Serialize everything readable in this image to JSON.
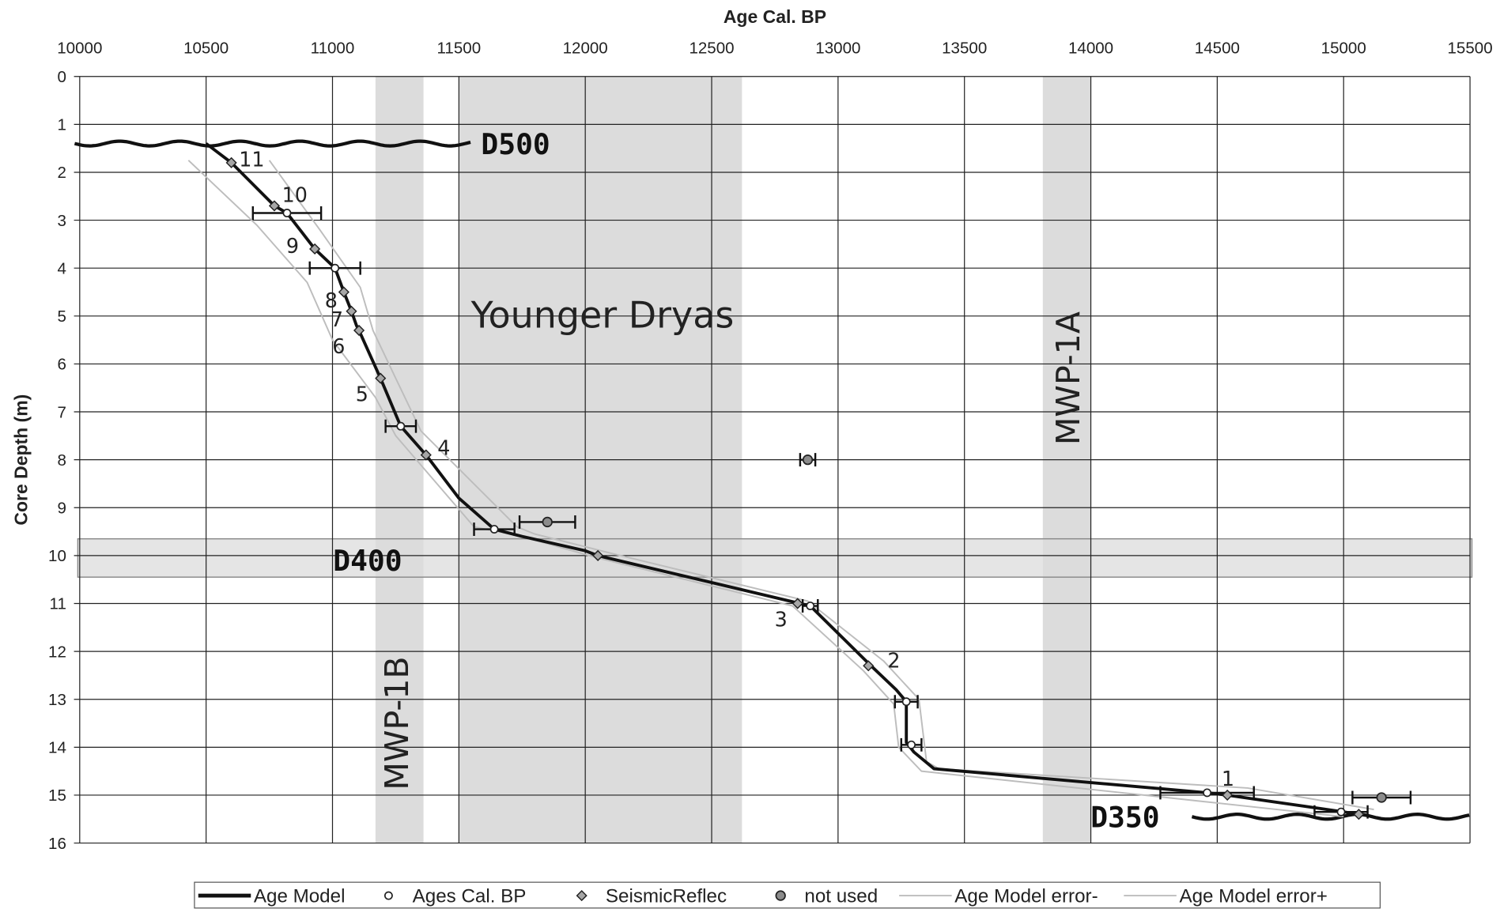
{
  "chart_data": {
    "type": "line",
    "x_label": "Age Cal. BP",
    "y_label": "Core Depth (m)",
    "xlim": [
      10000,
      15500
    ],
    "xticks": [
      10000,
      10500,
      11000,
      11500,
      12000,
      12500,
      13000,
      13500,
      14000,
      14500,
      15000,
      15500
    ],
    "ylim": [
      0,
      16
    ],
    "yticks": [
      0,
      1,
      2,
      3,
      4,
      5,
      6,
      7,
      8,
      9,
      10,
      11,
      12,
      13,
      14,
      15,
      16
    ],
    "y_inverted": true,
    "grid": true,
    "legend": "bottom",
    "vbands": [
      {
        "label": "MWP-1B",
        "xlim": [
          11170,
          11360
        ]
      },
      {
        "label": "Younger Dryas",
        "xlim": [
          11500,
          12620
        ]
      },
      {
        "label": "MWP-1A",
        "xlim": [
          13810,
          14000
        ]
      }
    ],
    "hbands": [
      {
        "label": "D400",
        "ylim": [
          9.65,
          10.45
        ]
      }
    ],
    "horizons": [
      {
        "label": "D500",
        "xlim": [
          9980,
          11550
        ],
        "y": 1.4
      },
      {
        "label": "D350",
        "xlim": [
          14400,
          15500
        ],
        "y": 15.45
      }
    ],
    "series": [
      {
        "name": "Age Model error-",
        "kind": "line",
        "color": "#bdbdbd",
        "x": [
          10430,
          10700,
          10900,
          11000,
          11170,
          11250,
          11560,
          11750,
          12050,
          12820,
          13100,
          13220,
          13240,
          13330,
          14300,
          15000
        ],
        "y": [
          1.75,
          3.1,
          4.3,
          5.5,
          6.7,
          7.5,
          9.4,
          9.6,
          10.05,
          11.05,
          12.4,
          13.1,
          14.0,
          14.5,
          15.05,
          15.45
        ]
      },
      {
        "name": "Age Model error+",
        "kind": "line",
        "color": "#bdbdbd",
        "x": [
          10750,
          10950,
          11110,
          11160,
          11250,
          11350,
          11730,
          11800,
          12100,
          12880,
          13180,
          13320,
          13350,
          13400,
          14620,
          15120
        ],
        "y": [
          1.75,
          3.2,
          4.4,
          5.3,
          6.3,
          7.4,
          9.4,
          9.55,
          9.95,
          10.95,
          12.2,
          13.0,
          14.3,
          14.45,
          14.85,
          15.3
        ]
      },
      {
        "name": "Age Model",
        "kind": "line",
        "color": "#111111",
        "x": [
          10500,
          10600,
          10770,
          10820,
          10930,
          11010,
          11045,
          11075,
          11095,
          11105,
          11190,
          11270,
          11370,
          11500,
          11640,
          11750,
          12000,
          12050,
          12850,
          12890,
          13130,
          13230,
          13270,
          13270,
          13300,
          13380,
          14460,
          14540,
          15000,
          15060
        ],
        "y": [
          1.4,
          1.8,
          2.7,
          2.85,
          3.6,
          4.0,
          4.5,
          4.9,
          5.2,
          5.3,
          6.3,
          7.3,
          7.9,
          8.8,
          9.45,
          9.6,
          9.9,
          10.0,
          11.0,
          11.05,
          12.3,
          12.8,
          13.05,
          13.9,
          14.1,
          14.45,
          14.95,
          15.0,
          15.35,
          15.4
        ]
      },
      {
        "name": "Ages Cal. BP",
        "kind": "points",
        "marker": "circle",
        "color": "#ffffff",
        "x": [
          10820,
          11010,
          11270,
          11640,
          12890,
          13270,
          13290,
          14460,
          14990
        ],
        "y": [
          2.85,
          4.0,
          7.3,
          9.45,
          11.05,
          13.05,
          13.95,
          14.95,
          15.35
        ],
        "xerr": [
          135,
          100,
          60,
          80,
          30,
          45,
          40,
          185,
          105
        ]
      },
      {
        "name": "SeismicReflec",
        "kind": "points",
        "marker": "diamond",
        "color": "#a6a6a6",
        "x": [
          10600,
          10770,
          10930,
          11045,
          11075,
          11105,
          11190,
          11370,
          12840,
          13120,
          14540,
          12050,
          15060
        ],
        "y": [
          1.8,
          2.7,
          3.6,
          4.5,
          4.9,
          5.3,
          6.3,
          7.9,
          11.0,
          12.3,
          15.0,
          10.0,
          15.4
        ],
        "labels": [
          "11",
          "10",
          "9",
          "8",
          "7",
          "6",
          "5",
          "4",
          "3",
          "2",
          "1",
          null,
          null
        ]
      },
      {
        "name": "not used",
        "kind": "points",
        "marker": "circle",
        "color": "#8c8c8c",
        "x": [
          11850,
          12880,
          15150
        ],
        "y": [
          9.3,
          8.0,
          15.05
        ],
        "xerr": [
          110,
          30,
          115
        ]
      }
    ],
    "legend_order": [
      2,
      3,
      4,
      5,
      0,
      1
    ]
  }
}
